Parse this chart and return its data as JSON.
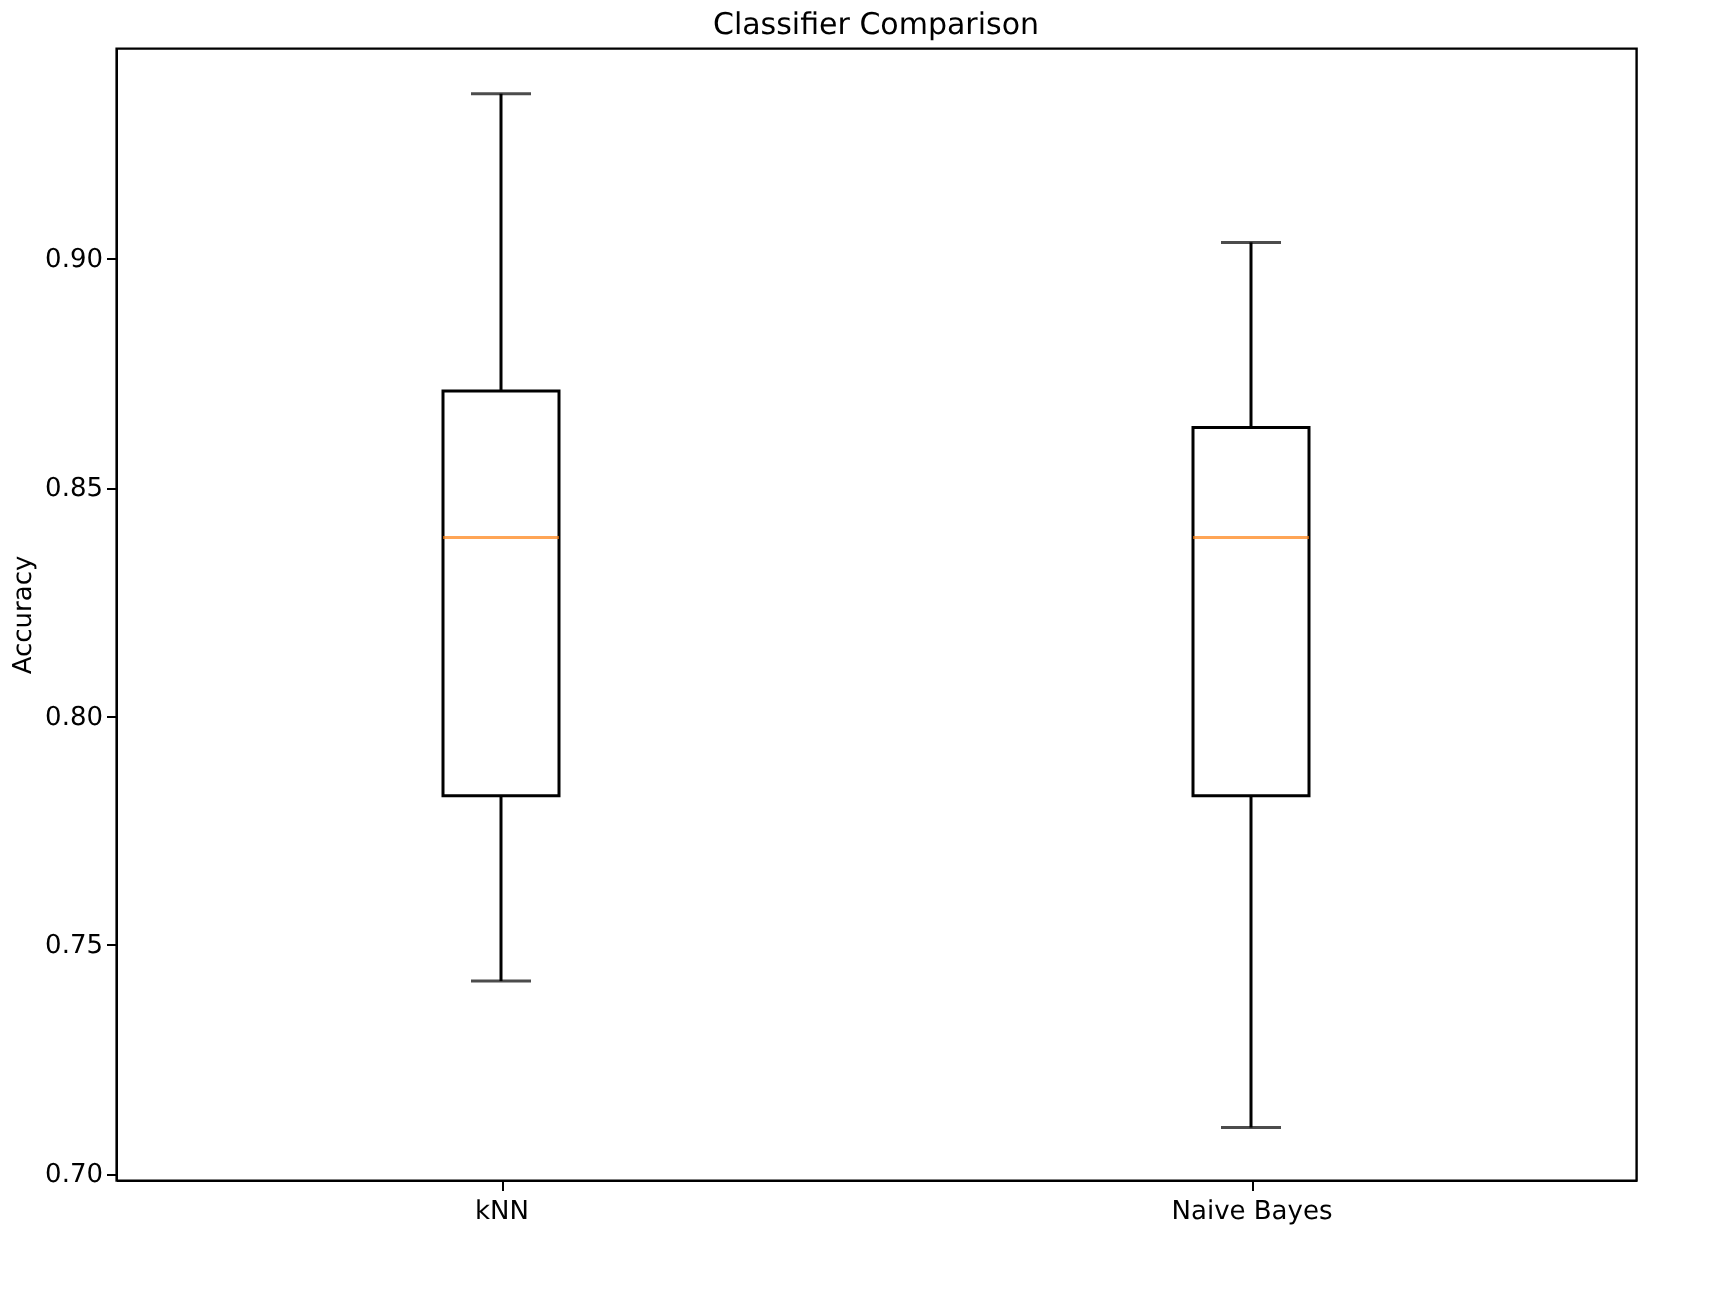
{
  "chart_data": {
    "type": "box",
    "title": "Classifier Comparison",
    "ylabel": "Accuracy",
    "categories": [
      "kNN",
      "Naive Bayes"
    ],
    "boxes": [
      {
        "low": 0.742,
        "q1": 0.7825,
        "median": 0.839,
        "q3": 0.871,
        "high": 0.936
      },
      {
        "low": 0.71,
        "q1": 0.7825,
        "median": 0.839,
        "q3": 0.863,
        "high": 0.9035
      }
    ],
    "ylim": [
      0.6985,
      0.946
    ],
    "yticks": [
      {
        "value": 0.7,
        "label": "0.70"
      },
      0.75,
      {
        "value": 0.8,
        "label": "0.80"
      },
      0.85,
      {
        "value": 0.9,
        "label": "0.90"
      }
    ],
    "grid": false
  }
}
